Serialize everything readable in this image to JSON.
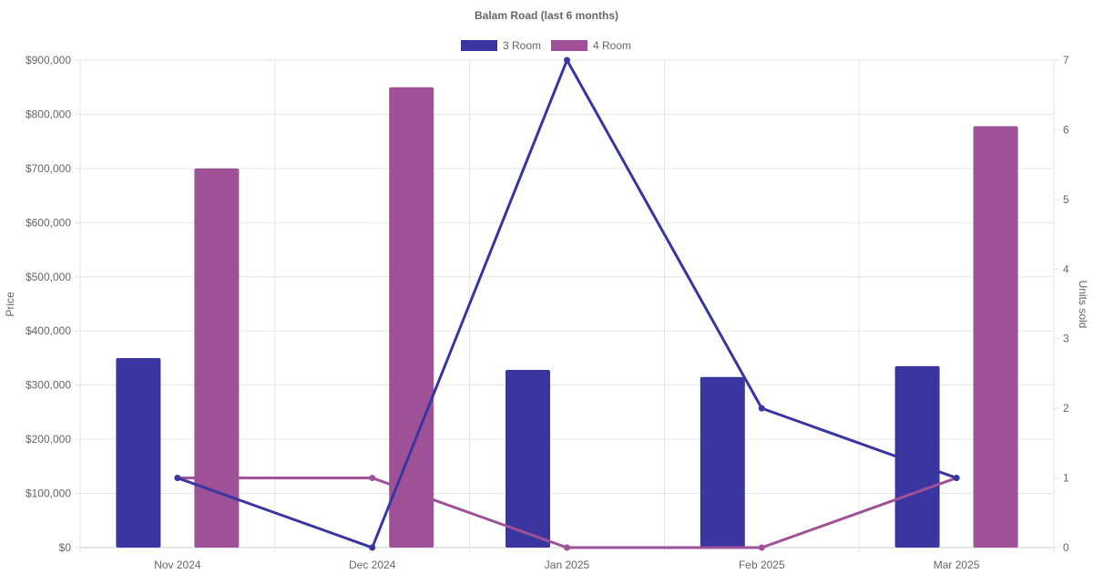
{
  "chart_data": {
    "type": "bar",
    "title": "Balam Road (last 6 months)",
    "categories": [
      "Nov 2024",
      "Dec 2024",
      "Jan 2025",
      "Feb 2025",
      "Mar 2025"
    ],
    "y_left": {
      "label": "Price",
      "min": 0,
      "max": 900000,
      "ticks": [
        "$0",
        "$100,000",
        "$200,000",
        "$300,000",
        "$400,000",
        "$500,000",
        "$600,000",
        "$700,000",
        "$800,000",
        "$900,000"
      ]
    },
    "y_right": {
      "label": "Units sold",
      "min": 0,
      "max": 7,
      "ticks": [
        "0",
        "1",
        "2",
        "3",
        "4",
        "5",
        "6",
        "7"
      ]
    },
    "legend": {
      "position": "top-center",
      "entries": [
        "3 Room",
        "4 Room"
      ]
    },
    "grid": true,
    "series": [
      {
        "name": "3 Room",
        "color": "#3a35a0",
        "price": [
          350000,
          null,
          328000,
          315000,
          335000
        ],
        "units": [
          1,
          0,
          7,
          2,
          1
        ]
      },
      {
        "name": "4 Room",
        "color": "#9e5196",
        "price": [
          700000,
          850000,
          null,
          null,
          778000
        ],
        "units": [
          1,
          1,
          0,
          0,
          1
        ]
      }
    ]
  }
}
